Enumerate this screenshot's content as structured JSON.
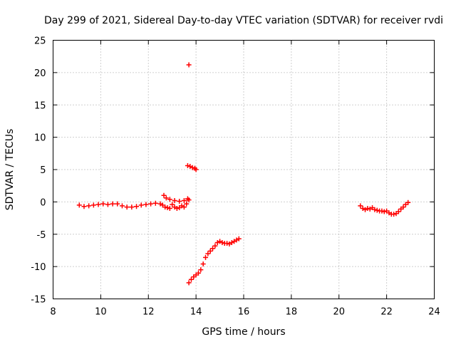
{
  "chart_data": {
    "type": "scatter",
    "title": "Day 299 of 2021, Sidereal Day-to-day VTEC variation (SDTVAR) for receiver rvdi",
    "xlabel": "GPS time / hours",
    "ylabel": "SDTVAR / TECUs",
    "xlim": [
      8,
      24
    ],
    "ylim": [
      -15,
      25
    ],
    "xticks": [
      8,
      10,
      12,
      14,
      16,
      18,
      20,
      22,
      24
    ],
    "yticks": [
      -15,
      -10,
      -5,
      0,
      5,
      10,
      15,
      20,
      25
    ],
    "grid": true,
    "marker": "plus",
    "color": "#ff0000",
    "series": [
      {
        "name": "segment-1",
        "x": [
          9.1,
          9.3,
          9.5,
          9.7,
          9.9,
          10.1,
          10.3,
          10.5,
          10.7,
          10.9,
          11.1,
          11.3,
          11.5,
          11.7,
          11.9,
          12.1,
          12.3,
          12.5,
          12.6,
          12.7,
          12.8,
          12.9,
          13.0,
          13.1,
          13.2,
          13.3,
          13.4,
          13.5,
          13.6,
          13.7
        ],
        "y": [
          -0.5,
          -0.7,
          -0.6,
          -0.5,
          -0.4,
          -0.3,
          -0.4,
          -0.3,
          -0.3,
          -0.6,
          -0.8,
          -0.8,
          -0.7,
          -0.5,
          -0.4,
          -0.3,
          -0.2,
          -0.3,
          -0.5,
          -0.8,
          -0.9,
          -1.0,
          -0.4,
          -0.8,
          -1.0,
          -0.9,
          -0.6,
          -0.8,
          -0.3,
          0.3
        ]
      },
      {
        "name": "segment-1-spikes",
        "x": [
          12.65,
          12.75,
          12.9,
          13.1,
          13.3,
          13.5,
          13.65
        ],
        "y": [
          1.0,
          0.6,
          0.4,
          0.2,
          0.1,
          0.2,
          0.5
        ]
      },
      {
        "name": "outlier",
        "x": [
          13.7
        ],
        "y": [
          21.2
        ]
      },
      {
        "name": "segment-2",
        "x": [
          13.65,
          13.75,
          13.85,
          13.95,
          14.0
        ],
        "y": [
          5.6,
          5.5,
          5.3,
          5.2,
          5.0
        ]
      },
      {
        "name": "segment-3",
        "x": [
          13.7,
          13.8,
          13.9,
          14.0,
          14.1,
          14.2,
          14.3,
          14.4,
          14.5,
          14.6,
          14.7,
          14.8,
          14.9,
          15.0,
          15.1,
          15.2,
          15.3,
          15.4,
          15.5,
          15.6,
          15.7,
          15.8
        ],
        "y": [
          -12.5,
          -12.0,
          -11.6,
          -11.3,
          -11.0,
          -10.5,
          -9.6,
          -8.6,
          -8.0,
          -7.6,
          -7.2,
          -6.8,
          -6.3,
          -6.1,
          -6.3,
          -6.4,
          -6.4,
          -6.5,
          -6.3,
          -6.1,
          -5.9,
          -5.7
        ]
      },
      {
        "name": "segment-4",
        "x": [
          20.9,
          21.0,
          21.1,
          21.2,
          21.3,
          21.4,
          21.5,
          21.6,
          21.7,
          21.8,
          21.9,
          22.0,
          22.1,
          22.2,
          22.3,
          22.4,
          22.5,
          22.6,
          22.7,
          22.8,
          22.9
        ],
        "y": [
          -0.6,
          -1.0,
          -1.2,
          -1.0,
          -1.1,
          -0.9,
          -1.2,
          -1.3,
          -1.4,
          -1.4,
          -1.5,
          -1.4,
          -1.7,
          -1.9,
          -1.9,
          -1.8,
          -1.5,
          -1.1,
          -0.8,
          -0.4,
          -0.1
        ]
      }
    ]
  }
}
